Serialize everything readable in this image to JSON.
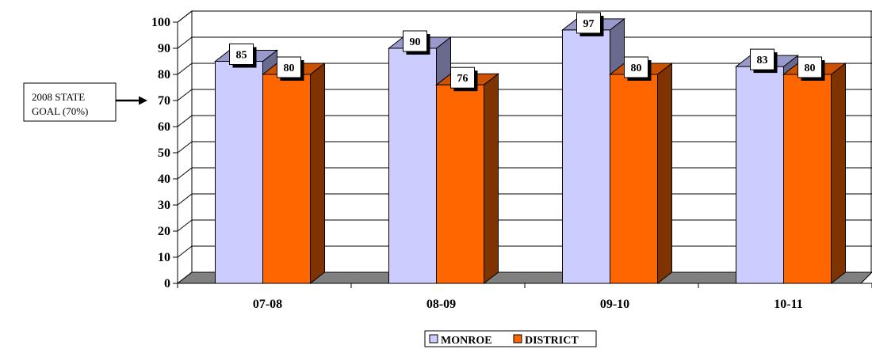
{
  "chart_data": {
    "type": "bar",
    "categories": [
      "07-08",
      "08-09",
      "09-10",
      "10-11"
    ],
    "series": [
      {
        "name": "MONROE",
        "values": [
          85,
          90,
          97,
          83
        ],
        "color": "#ccccff",
        "side_color": "#6a6a8e",
        "top_color": "#9999cc"
      },
      {
        "name": "DISTRICT",
        "values": [
          80,
          76,
          80,
          80
        ],
        "color": "#ff6600",
        "side_color": "#7f3300",
        "top_color": "#cc5200"
      }
    ],
    "ylim": [
      0,
      100
    ],
    "yticks": [
      "0",
      "10",
      "20",
      "30",
      "40",
      "50",
      "60",
      "70",
      "80",
      "90",
      "100"
    ],
    "grid": true,
    "legend": "bottom",
    "annotation": {
      "line1": "2008 STATE",
      "line2": "GOAL (70%)",
      "target_value": 70
    },
    "floor_color": "#808080"
  }
}
